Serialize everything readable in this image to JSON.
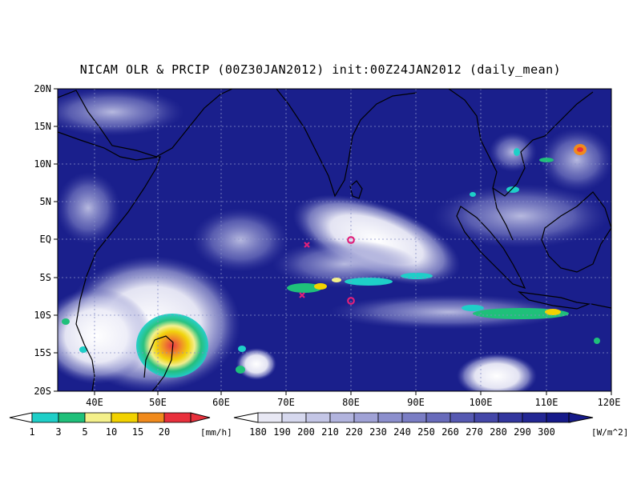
{
  "title": "NICAM OLR & PRCIP (00Z30JAN2012) init:00Z24JAN2012 (daily_mean)",
  "map": {
    "lon_range": [
      35,
      120
    ],
    "lat_range": [
      -20,
      20
    ],
    "lat_labels": [
      "20N",
      "15N",
      "10N",
      "5N",
      "EQ",
      "5S",
      "10S",
      "15S",
      "20S"
    ],
    "lon_labels": [
      "40E",
      "50E",
      "60E",
      "70E",
      "80E",
      "90E",
      "100E",
      "110E",
      "120E"
    ],
    "colors": {
      "ocean_clear": "#1a1f8c",
      "cloud": "#ffffff",
      "coast": "#000000",
      "marker": "#e0207a"
    },
    "markers": [
      {
        "symbol": "x",
        "lon": 73,
        "lat": -0.8
      },
      {
        "symbol": "x",
        "lon": 72.5,
        "lat": -7.5
      },
      {
        "symbol": "o",
        "lon": 80,
        "lat": 0
      },
      {
        "symbol": "o",
        "lon": 80,
        "lat": -8
      }
    ]
  },
  "legend_precip": {
    "unit": "[mm/h]",
    "labels": [
      "1",
      "3",
      "5",
      "10",
      "15",
      "20"
    ],
    "colors": [
      "#1ecfc8",
      "#1fc07a",
      "#f4f08a",
      "#f2d200",
      "#f08a1c",
      "#e8303c"
    ]
  },
  "legend_olr": {
    "unit": "[W/m^2]",
    "labels": [
      "180",
      "190",
      "200",
      "210",
      "220",
      "230",
      "240",
      "250",
      "260",
      "270",
      "280",
      "290",
      "300"
    ],
    "colors": [
      "#e8e8f4",
      "#d6d8ee",
      "#c4c6e6",
      "#b2b4de",
      "#a0a2d6",
      "#8c8fcd",
      "#7a7dc4",
      "#686bbb",
      "#5659b2",
      "#4447a8",
      "#33369e",
      "#232794",
      "#161a8a"
    ]
  }
}
